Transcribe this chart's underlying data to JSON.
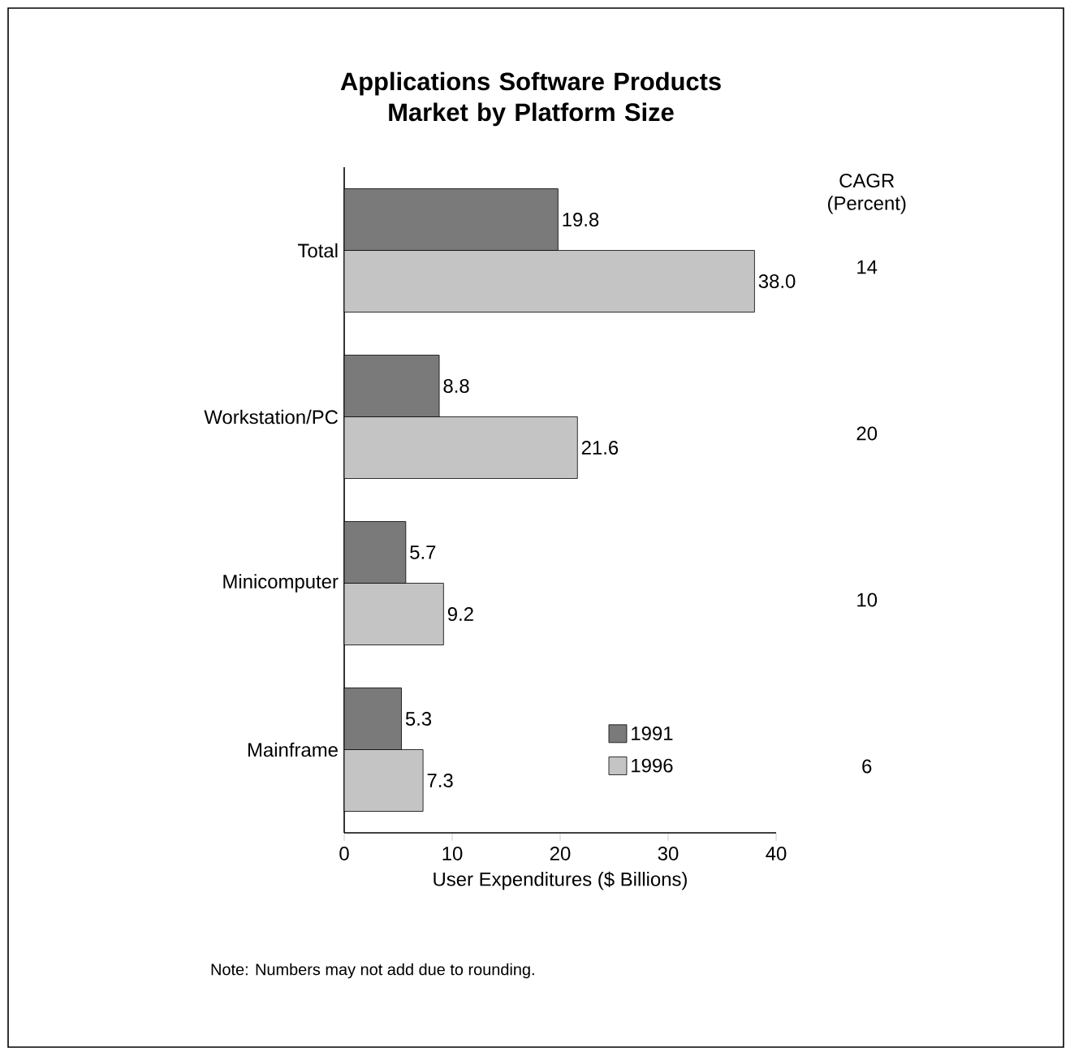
{
  "chart_data": {
    "type": "bar",
    "orientation": "horizontal",
    "title": "Applications Software Products Market by Platform Size",
    "xlabel": "User Expenditures ($ Billions)",
    "categories": [
      "Total",
      "Workstation/PC",
      "Minicomputer",
      "Mainframe"
    ],
    "series": [
      {
        "name": "1991",
        "color": "#7a7a7a",
        "values": [
          19.8,
          8.8,
          5.7,
          5.3
        ],
        "value_labels": [
          "19.8",
          "8.8",
          "5.7",
          "5.3"
        ]
      },
      {
        "name": "1996",
        "color": "#c4c4c4",
        "values": [
          38.0,
          21.6,
          9.2,
          7.3
        ],
        "value_labels": [
          "38.0",
          "21.6",
          "9.2",
          "7.3"
        ]
      }
    ],
    "xlim": [
      0,
      40
    ],
    "xticks": [
      0,
      10,
      20,
      30,
      40
    ],
    "legend": "bottom right",
    "grid": false,
    "annotations": [
      "CAGR (Percent)",
      "14",
      "20",
      "10",
      "6",
      "Note: Numbers may not add due to rounding."
    ]
  }
}
